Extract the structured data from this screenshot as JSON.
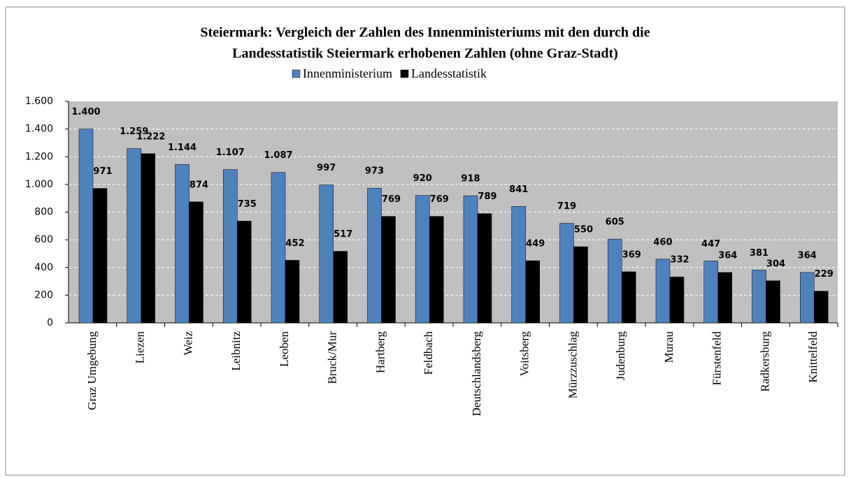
{
  "chart_data": {
    "type": "bar",
    "title": [
      "Steiermark: Vergleich der Zahlen des Innenministeriums mit den durch die",
      "Landesstatistik Steiermark erhobenen Zahlen (ohne Graz-Stadt)"
    ],
    "categories": [
      "Graz Umgebung",
      "Liezen",
      "Weiz",
      "Leibnitz",
      "Leoben",
      "Bruck/Mur",
      "Hartberg",
      "Feldbach",
      "Deutschlandsberg",
      "Voitsberg",
      "Mürzzuschlag",
      "Judenburg",
      "Murau",
      "Fürstenfeld",
      "Radkersburg",
      "Knittelfeld"
    ],
    "series": [
      {
        "name": "Innenministerium",
        "color": "#4f81bd",
        "values": [
          1400,
          1259,
          1144,
          1107,
          1087,
          997,
          973,
          920,
          918,
          841,
          719,
          605,
          460,
          447,
          381,
          364
        ],
        "value_labels": [
          "1.400",
          "1.259",
          "1.144",
          "1.107",
          "1.087",
          "997",
          "973",
          "920",
          "918",
          "841",
          "719",
          "605",
          "460",
          "447",
          "381",
          "364"
        ]
      },
      {
        "name": "Landesstatistik",
        "color": "#000000",
        "values": [
          971,
          1222,
          874,
          735,
          452,
          517,
          769,
          769,
          789,
          449,
          550,
          369,
          332,
          364,
          304,
          229
        ],
        "value_labels": [
          "971",
          "1.222",
          "874",
          "735",
          "452",
          "517",
          "769",
          "769",
          "789",
          "449",
          "550",
          "369",
          "332",
          "364",
          "304",
          "229"
        ]
      }
    ],
    "ylim": [
      0,
      1600
    ],
    "yticks": [
      0,
      200,
      400,
      600,
      800,
      {
        "value": 1000,
        "label": "1.000"
      },
      {
        "value": 1200,
        "label": "1.200"
      },
      {
        "value": 1400,
        "label": "1.400"
      },
      {
        "value": 1600,
        "label": "1.600"
      }
    ],
    "grid": true
  }
}
